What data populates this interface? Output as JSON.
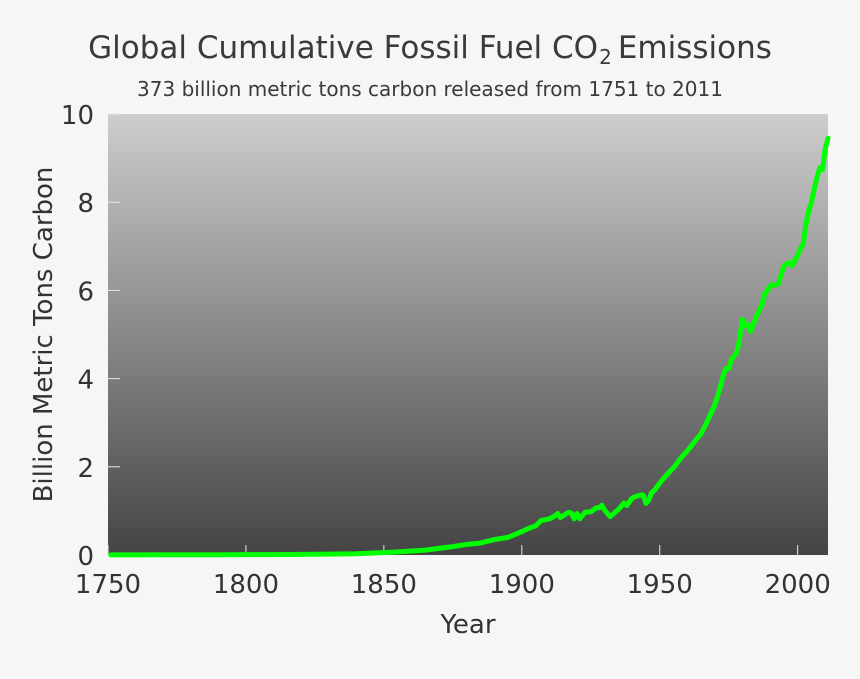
{
  "chart_data": {
    "type": "line",
    "title": {
      "prefix": "Global Cumulative Fossil Fuel CO",
      "subscript": "2",
      "suffix": "Emissions"
    },
    "subtitle": "373 billion metric tons carbon released from 1751 to 2011",
    "xlabel": "Year",
    "ylabel": "Billion Metric Tons Carbon",
    "xlim": [
      1750,
      2011
    ],
    "ylim": [
      0,
      10
    ],
    "x_ticks": [
      "1750",
      "1800",
      "1850",
      "1900",
      "1950",
      "2000"
    ],
    "y_ticks": [
      "0",
      "2",
      "4",
      "6",
      "8",
      "10"
    ],
    "grid": false,
    "line_color": "#00ff00",
    "background_gradient": [
      "#cdcdcd",
      "#444444"
    ],
    "series": [
      {
        "x": [
          1751,
          1760,
          1770,
          1780,
          1790,
          1800,
          1810,
          1820,
          1830,
          1840,
          1850,
          1855,
          1860,
          1865,
          1870,
          1875,
          1880,
          1885,
          1890,
          1895,
          1900,
          1903,
          1905,
          1907,
          1910,
          1912,
          1913,
          1914,
          1916,
          1917,
          1918,
          1919,
          1920,
          1921,
          1923,
          1925,
          1927,
          1928,
          1929,
          1930,
          1932,
          1935,
          1937,
          1938,
          1940,
          1941,
          1943,
          1944,
          1945,
          1946,
          1947,
          1948,
          1950,
          1952,
          1955,
          1958,
          1960,
          1963,
          1965,
          1967,
          1970,
          1972,
          1973,
          1974,
          1975,
          1976,
          1978,
          1979,
          1980,
          1981,
          1982,
          1983,
          1985,
          1987,
          1988,
          1990,
          1991,
          1992,
          1993,
          1995,
          1997,
          1998,
          2000,
          2001,
          2002,
          2003,
          2004,
          2005,
          2006,
          2007,
          2008,
          2009,
          2010,
          2011
        ],
        "y": [
          0.003,
          0.003,
          0.004,
          0.005,
          0.006,
          0.008,
          0.01,
          0.014,
          0.02,
          0.03,
          0.054,
          0.07,
          0.09,
          0.11,
          0.15,
          0.19,
          0.24,
          0.27,
          0.35,
          0.4,
          0.53,
          0.62,
          0.66,
          0.78,
          0.82,
          0.89,
          0.94,
          0.85,
          0.93,
          0.97,
          0.95,
          0.82,
          0.94,
          0.82,
          0.97,
          0.98,
          1.07,
          1.07,
          1.13,
          1.02,
          0.87,
          1.03,
          1.18,
          1.12,
          1.29,
          1.32,
          1.36,
          1.36,
          1.17,
          1.24,
          1.41,
          1.46,
          1.63,
          1.78,
          1.98,
          2.23,
          2.36,
          2.6,
          2.75,
          3.0,
          3.41,
          3.82,
          4.08,
          4.23,
          4.23,
          4.43,
          4.6,
          4.92,
          5.35,
          5.19,
          5.23,
          5.07,
          5.41,
          5.67,
          5.92,
          6.1,
          6.13,
          6.12,
          6.15,
          6.56,
          6.63,
          6.56,
          6.8,
          6.95,
          7.05,
          7.5,
          7.8,
          8.0,
          8.3,
          8.56,
          8.78,
          8.74,
          9.2,
          9.45
        ]
      }
    ]
  }
}
